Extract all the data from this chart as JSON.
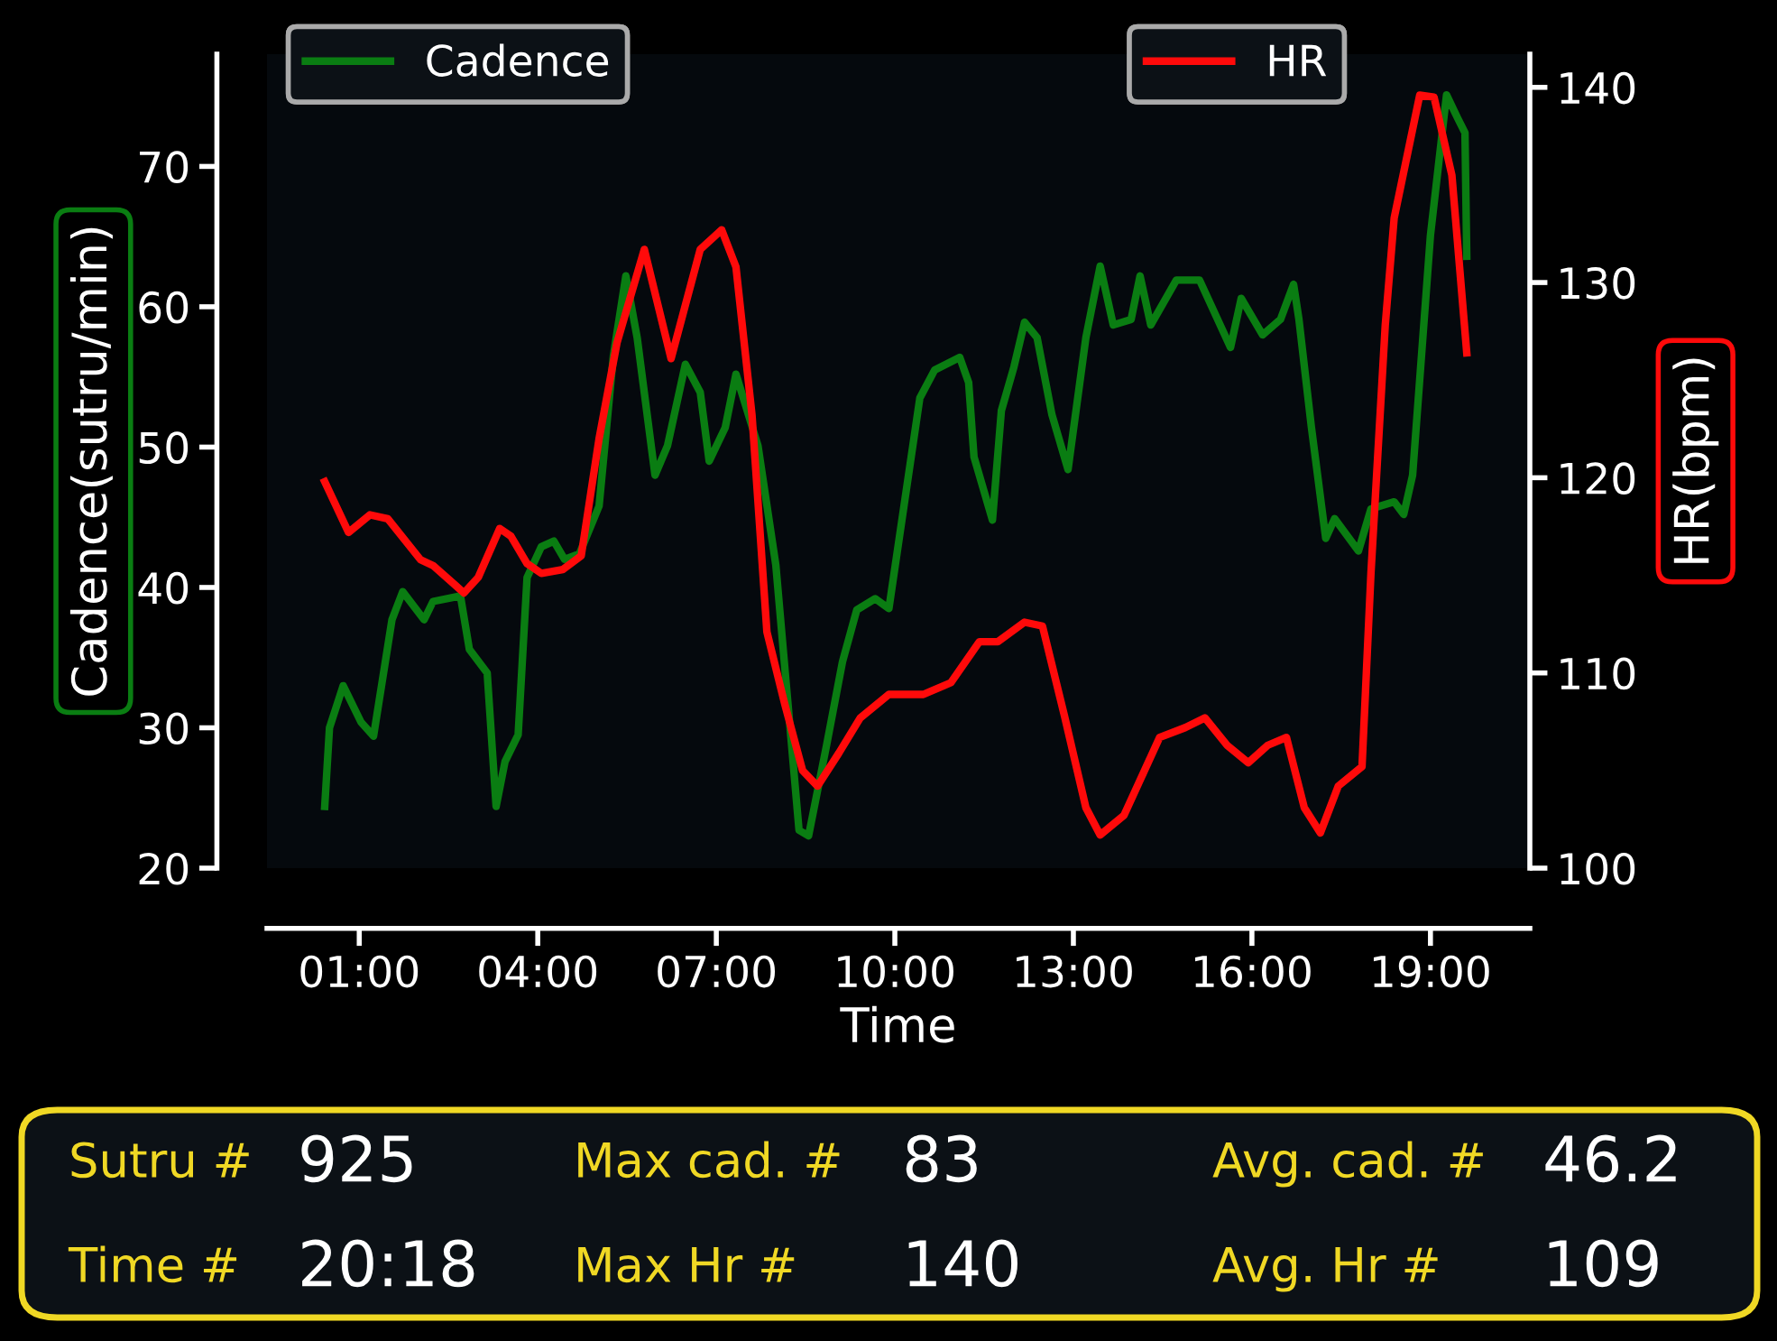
{
  "chart_data": {
    "type": "line",
    "xlabel": "Time",
    "ylabel": "Cadence(sutru/min)",
    "y2label": "HR(bpm)",
    "xlim": [
      -0.55,
      20.67
    ],
    "xticks": [
      {
        "value": 1,
        "label": "01:00"
      },
      {
        "value": 4,
        "label": "04:00"
      },
      {
        "value": 7,
        "label": "07:00"
      },
      {
        "value": 10,
        "label": "10:00"
      },
      {
        "value": 13,
        "label": "13:00"
      },
      {
        "value": 16,
        "label": "16:00"
      },
      {
        "value": 19,
        "label": "19:00"
      }
    ],
    "ylim": [
      20,
      78
    ],
    "yticks": [
      20,
      30,
      40,
      50,
      60,
      70
    ],
    "y2lim": [
      100,
      141.7
    ],
    "y2ticks": [
      100,
      110,
      120,
      130,
      140
    ],
    "legend": "top",
    "grid": false,
    "series": [
      {
        "name": "Cadence",
        "color": "#0a7d12",
        "x": [
          0.42,
          0.5,
          0.73,
          1.03,
          1.24,
          1.55,
          1.73,
          2.09,
          2.24,
          2.7,
          2.85,
          3.15,
          3.3,
          3.45,
          3.67,
          3.82,
          4.06,
          4.27,
          4.45,
          4.7,
          5.03,
          5.27,
          5.48,
          5.67,
          5.97,
          6.18,
          6.48,
          6.73,
          6.88,
          7.15,
          7.33,
          7.7,
          8.0,
          8.39,
          8.55,
          8.85,
          9.12,
          9.36,
          9.67,
          9.9,
          10.42,
          10.67,
          11.09,
          11.24,
          11.33,
          11.64,
          11.79,
          12.0,
          12.18,
          12.39,
          12.64,
          12.91,
          13.21,
          13.45,
          13.67,
          13.97,
          14.12,
          14.3,
          14.73,
          15.12,
          15.64,
          15.82,
          16.18,
          16.48,
          16.7,
          16.79,
          17.0,
          17.24,
          17.39,
          17.79,
          18.0,
          18.39,
          18.55,
          18.7,
          19.0,
          19.27,
          19.45,
          19.58,
          19.61
        ],
        "values": [
          24.4,
          30.0,
          33.0,
          30.4,
          29.4,
          37.7,
          39.7,
          37.7,
          39.0,
          39.4,
          35.6,
          33.9,
          24.4,
          27.6,
          29.5,
          40.7,
          42.9,
          43.3,
          42.0,
          42.4,
          45.8,
          56.5,
          62.2,
          57.8,
          48.0,
          50.1,
          55.9,
          53.9,
          49.0,
          51.4,
          55.2,
          50.1,
          41.6,
          22.7,
          22.3,
          28.7,
          34.7,
          38.4,
          39.2,
          38.5,
          53.5,
          55.5,
          56.4,
          54.6,
          49.3,
          44.8,
          52.6,
          55.7,
          58.9,
          57.8,
          52.3,
          48.4,
          57.8,
          62.9,
          58.7,
          59.1,
          62.2,
          58.7,
          61.9,
          61.9,
          57.1,
          60.6,
          58.0,
          59.1,
          61.6,
          59.1,
          51.4,
          43.5,
          44.9,
          42.6,
          45.6,
          46.1,
          45.2,
          48.0,
          65.1,
          75.1,
          73.5,
          72.4,
          63.6
        ]
      },
      {
        "name": "HR",
        "color": "#ff0a0a",
        "axis": "y2",
        "x": [
          0.42,
          0.82,
          1.18,
          1.48,
          2.03,
          2.24,
          2.76,
          3.0,
          3.36,
          3.55,
          3.82,
          4.06,
          4.42,
          4.73,
          5.03,
          5.33,
          5.79,
          6.24,
          6.73,
          7.09,
          7.33,
          7.6,
          7.85,
          8.15,
          8.45,
          8.7,
          9.06,
          9.42,
          9.9,
          10.48,
          10.94,
          11.42,
          11.73,
          12.18,
          12.48,
          12.85,
          13.21,
          13.45,
          13.85,
          14.15,
          14.45,
          14.88,
          15.21,
          15.58,
          15.94,
          16.27,
          16.58,
          16.88,
          17.15,
          17.45,
          17.85,
          18.0,
          18.24,
          18.39,
          18.82,
          19.06,
          19.36,
          19.61
        ],
        "values": [
          119.8,
          117.2,
          118.1,
          117.9,
          115.8,
          115.5,
          114.1,
          114.9,
          117.4,
          117.0,
          115.6,
          115.1,
          115.3,
          116.0,
          122.0,
          126.9,
          131.7,
          126.1,
          131.7,
          132.7,
          130.8,
          123.2,
          112.1,
          108.4,
          105.0,
          104.2,
          105.9,
          107.7,
          108.9,
          108.9,
          109.5,
          111.6,
          111.6,
          112.6,
          112.4,
          107.8,
          103.1,
          101.7,
          102.7,
          104.7,
          106.7,
          107.2,
          107.7,
          106.3,
          105.4,
          106.3,
          106.7,
          103.1,
          101.8,
          104.2,
          105.2,
          115.1,
          127.8,
          133.3,
          139.6,
          139.5,
          135.5,
          126.4
        ]
      }
    ],
    "annotations": [
      "Sutru #",
      "925",
      "Max cad. #",
      "83",
      "Avg. cad. #",
      "46.2",
      "Time #",
      "20:18",
      "Max Hr #",
      "140",
      "Avg. Hr #",
      "109"
    ]
  }
}
